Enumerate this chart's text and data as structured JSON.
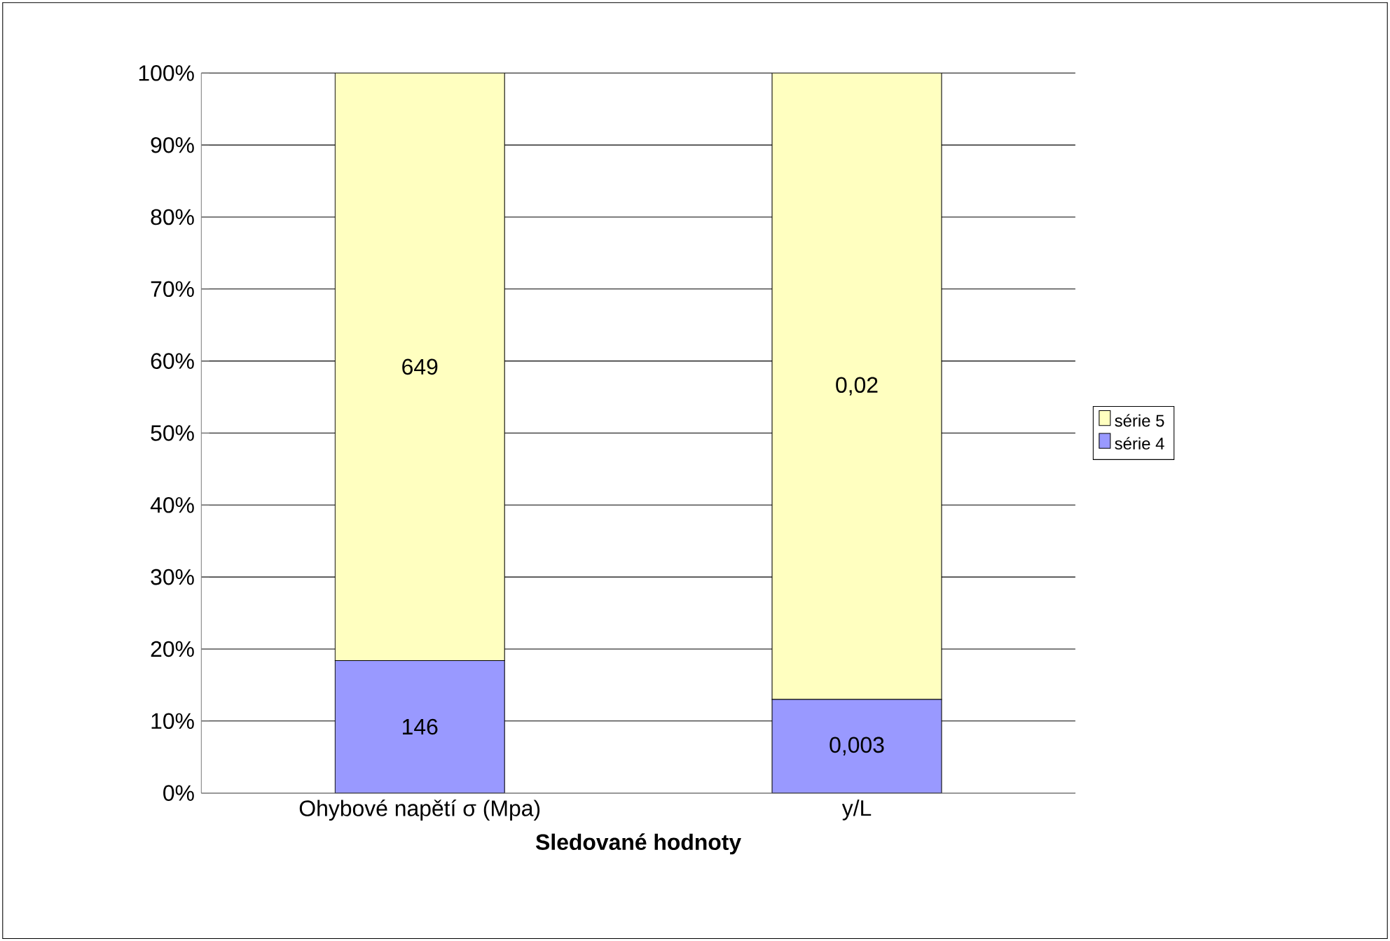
{
  "chart_data": {
    "type": "bar",
    "stacked": true,
    "xlabel": "Sledované hodnoty",
    "categories": [
      "Ohybové napětí σ (Mpa)",
      "y/L"
    ],
    "series": [
      {
        "name": "série 4",
        "color": "#9999ff",
        "values": [
          18.4,
          13.0
        ]
      },
      {
        "name": "série 5",
        "color": "#ffffc0",
        "values": [
          81.6,
          87.0
        ]
      }
    ],
    "annotations": [
      "146",
      "0,003",
      "649",
      "0,02"
    ],
    "ylim": [
      0,
      100
    ],
    "yticks": [
      {
        "value": 0,
        "label": "0%"
      },
      {
        "value": 10,
        "label": "10%"
      },
      {
        "value": 20,
        "label": "20%"
      },
      {
        "value": 30,
        "label": "30%"
      },
      {
        "value": 40,
        "label": "40%"
      },
      {
        "value": 50,
        "label": "50%"
      },
      {
        "value": 60,
        "label": "60%"
      },
      {
        "value": 70,
        "label": "70%"
      },
      {
        "value": 80,
        "label": "80%"
      },
      {
        "value": 90,
        "label": "90%"
      },
      {
        "value": 100,
        "label": "100%"
      }
    ],
    "grid": "y",
    "legend": "right"
  }
}
